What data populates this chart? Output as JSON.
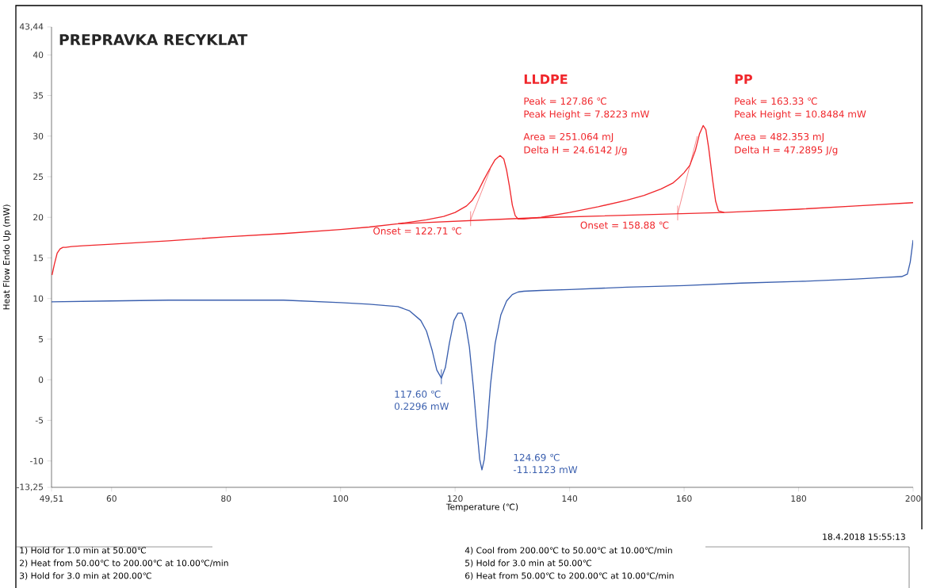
{
  "chart_data": {
    "type": "line",
    "title": "PREPRAVKA RECYKLAT",
    "xlabel": "Temperature (℃)",
    "ylabel": "Heat Flow Endo Up (mW)",
    "xlim": [
      49.51,
      200
    ],
    "ylim": [
      -13.25,
      43.44
    ],
    "xticks": [
      {
        "value": 49.51,
        "label": "49,51"
      },
      60,
      80,
      100,
      120,
      140,
      160,
      180,
      {
        "value": 200,
        "label": "200"
      }
    ],
    "yticks": [
      {
        "value": -13.25,
        "label": "-13,25"
      },
      -10,
      -5,
      0,
      5,
      10,
      15,
      20,
      25,
      30,
      35,
      40,
      {
        "value": 43.44,
        "label": "43,44"
      }
    ],
    "grid": false,
    "marker": "none",
    "line_style": "solid",
    "series": [
      {
        "color": "#f0262b",
        "x": [
          49.6,
          50,
          50.5,
          51,
          51.5,
          52,
          53,
          55,
          60,
          70,
          80,
          90,
          100,
          105,
          110,
          115,
          118,
          120,
          122,
          123,
          124,
          125,
          126,
          127,
          127.86,
          128.5,
          129,
          129.5,
          130,
          130.5,
          131,
          132,
          135,
          140,
          145,
          150,
          153,
          156,
          158,
          159,
          160,
          161,
          162,
          162.7,
          163.33,
          163.8,
          164.3,
          165,
          165.5,
          166,
          167,
          170,
          180,
          190,
          200
        ],
        "values": [
          12.9,
          14.2,
          15.6,
          16.1,
          16.3,
          16.3,
          16.4,
          16.5,
          16.7,
          17.1,
          17.6,
          18.0,
          18.5,
          18.8,
          19.2,
          19.7,
          20.1,
          20.6,
          21.4,
          22.1,
          23.2,
          24.6,
          25.9,
          27.1,
          27.6,
          27.2,
          25.8,
          23.8,
          21.5,
          20.2,
          19.8,
          19.8,
          20.0,
          20.6,
          21.3,
          22.1,
          22.7,
          23.5,
          24.2,
          24.8,
          25.5,
          26.4,
          28.3,
          30.3,
          31.3,
          30.8,
          28.5,
          24.5,
          22.0,
          20.8,
          20.6,
          20.7,
          21.0,
          21.4,
          21.8
        ]
      },
      {
        "color": "#3a5fae",
        "x": [
          49.51,
          60,
          70,
          80,
          90,
          100,
          105,
          110,
          112,
          114,
          115,
          116,
          116.8,
          117.6,
          118.3,
          119,
          119.8,
          120.5,
          121.2,
          121.8,
          122.5,
          123.2,
          123.8,
          124.3,
          124.69,
          125.1,
          125.6,
          126.2,
          127,
          128,
          129,
          130,
          131,
          132,
          135,
          140,
          150,
          160,
          170,
          180,
          190,
          195,
          198,
          199,
          199.5,
          200
        ],
        "values": [
          9.6,
          9.7,
          9.8,
          9.8,
          9.8,
          9.5,
          9.3,
          9.0,
          8.5,
          7.3,
          6.0,
          3.6,
          1.2,
          0.2,
          1.5,
          4.5,
          7.3,
          8.2,
          8.2,
          7.0,
          4.0,
          -1.0,
          -6.0,
          -9.8,
          -11.1,
          -9.8,
          -6.0,
          -0.5,
          4.5,
          8.0,
          9.7,
          10.5,
          10.8,
          10.9,
          11.0,
          11.1,
          11.4,
          11.6,
          11.9,
          12.1,
          12.4,
          12.6,
          12.7,
          13.0,
          14.5,
          17.2
        ]
      },
      {
        "color": "#f0262b",
        "x": [
          110,
          132.5,
          167
        ],
        "values": [
          19.2,
          19.9,
          20.6
        ]
      },
      {
        "color": "#f0262b",
        "x": [
          122.71,
          126.2
        ],
        "values": [
          19.7,
          26.0
        ]
      },
      {
        "color": "#f0262b",
        "x": [
          158.88,
          162.3
        ],
        "values": [
          20.4,
          30.0
        ]
      }
    ],
    "annotations": [
      "LLDPE",
      "Peak = 127.86 ℃",
      "Peak Height = 7.8223 mW",
      "Area = 251.064 mJ",
      "Delta H = 24.6142 J/g",
      "PP",
      "Peak = 163.33 ℃",
      "Peak Height = 10.8484 mW",
      "Area = 482.353 mJ",
      "Delta H = 47.2895 J/g",
      {
        "text": "Onset = 122.71 ℃",
        "x": 122.71,
        "y": 19.7
      },
      {
        "text": "Onset = 158.88 ℃",
        "x": 158.88,
        "y": 20.4
      },
      {
        "text": "117.60 ℃",
        "x": 117.6,
        "y": 0.2296
      },
      {
        "text": "0.2296 mW",
        "x": 117.6,
        "y": 0.2296
      },
      "124.69 ℃",
      "-11.1123 mW",
      "18.4.2018 15:55:13",
      "1)  Hold for 1.0 min at 50.00℃",
      "2)  Heat from 50.00℃ to 200.00℃ at 10.00℃/min",
      "3)  Hold for 3.0 min at 200.00℃",
      "4)    Cool from 200.00℃ to 50.00℃ at 10.00℃/min",
      "5)    Hold for 3.0 min at 50.00℃",
      "6)    Heat from 50.00℃ to 200.00℃ at 10.00℃/min"
    ]
  }
}
